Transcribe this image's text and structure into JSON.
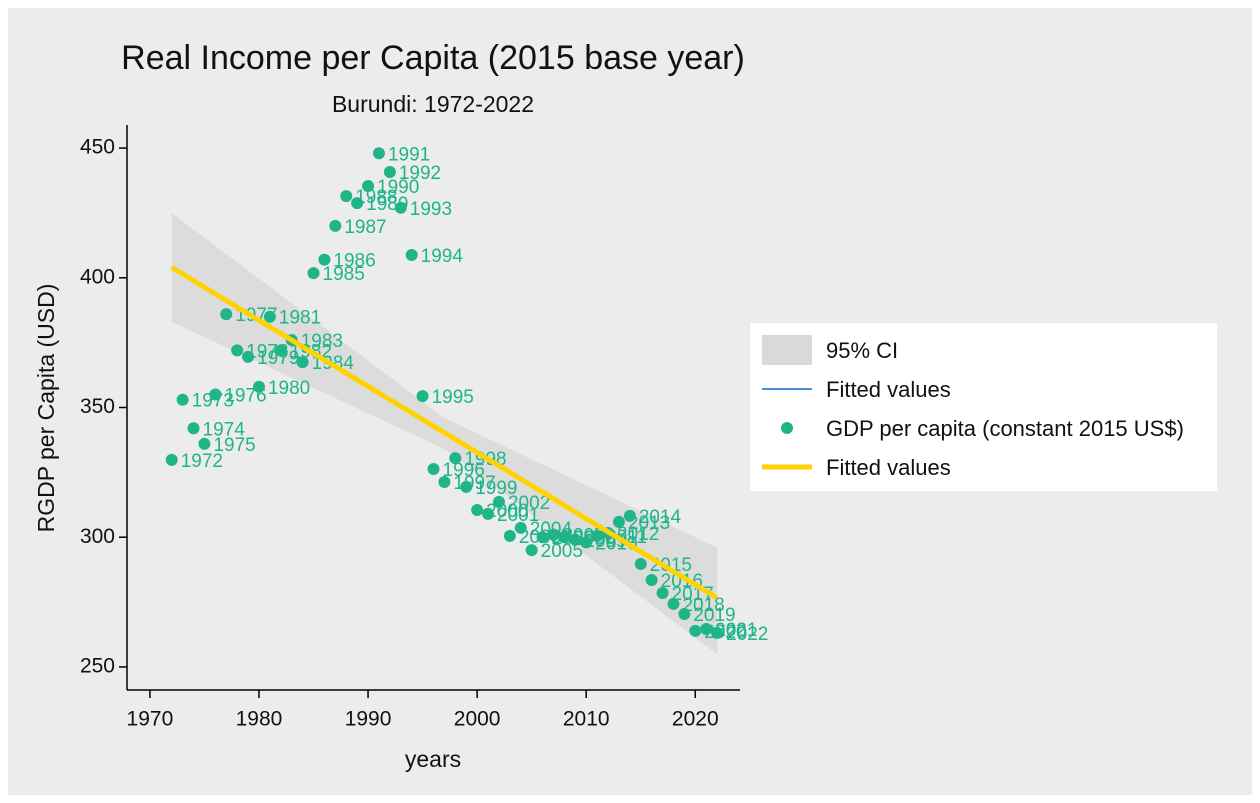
{
  "chart_data": {
    "type": "scatter",
    "title": "Real Income per Capita (2015 base year)",
    "subtitle": "Burundi: 1972-2022",
    "x_label": "years",
    "y_label": "RGDP per Capita (USD)",
    "xlim": [
      1967.9,
      2024.1
    ],
    "xticks": [
      1970,
      1980,
      1990,
      2000,
      2010,
      2020
    ],
    "ylim": [
      241.1,
      458.9
    ],
    "yticks": [
      250,
      300,
      350,
      400,
      450
    ],
    "x": [
      1972,
      1973,
      1974,
      1975,
      1976,
      1977,
      1978,
      1979,
      1980,
      1981,
      1982,
      1983,
      1984,
      1985,
      1986,
      1987,
      1988,
      1989,
      1990,
      1991,
      1992,
      1993,
      1994,
      1995,
      1996,
      1997,
      1998,
      1999,
      2000,
      2001,
      2002,
      2003,
      2004,
      2005,
      2006,
      2007,
      2008,
      2009,
      2010,
      2011,
      2012,
      2013,
      2014,
      2015,
      2016,
      2017,
      2018,
      2019,
      2020,
      2021,
      2022
    ],
    "series": [
      {
        "name": "95% CI",
        "type": "area",
        "color": "#d9d9d9",
        "x": [
          1972,
          1997,
          2022
        ],
        "upper": [
          425,
          346,
          296
        ],
        "lower": [
          383,
          334,
          255
        ]
      },
      {
        "name": "Fitted values",
        "type": "line",
        "color": "#4a90d9",
        "x": [
          1972,
          2022
        ],
        "values": [
          404,
          276.6
        ]
      },
      {
        "name": "GDP per capita (constant 2015 US$)",
        "type": "scatter",
        "color": "#1fb589",
        "values": [
          329.8,
          353,
          342,
          336,
          355,
          386,
          372,
          369.5,
          358,
          385,
          372,
          376,
          367.5,
          401.8,
          407,
          420,
          431.5,
          428.8,
          435.4,
          448,
          440.8,
          427,
          408.8,
          354.4,
          326.3,
          321.3,
          330.5,
          319.4,
          310.5,
          309,
          313.6,
          300.5,
          303.6,
          295,
          300,
          301,
          300,
          299,
          298,
          300.5,
          301.6,
          305.9,
          308.2,
          289.7,
          283.5,
          278.5,
          274.3,
          270.4,
          263.9,
          264.6,
          263.1
        ]
      },
      {
        "name": "Fitted values",
        "type": "line",
        "color": "#ffd200",
        "x": [
          1972,
          2022
        ],
        "values": [
          404,
          276.6
        ]
      }
    ]
  }
}
